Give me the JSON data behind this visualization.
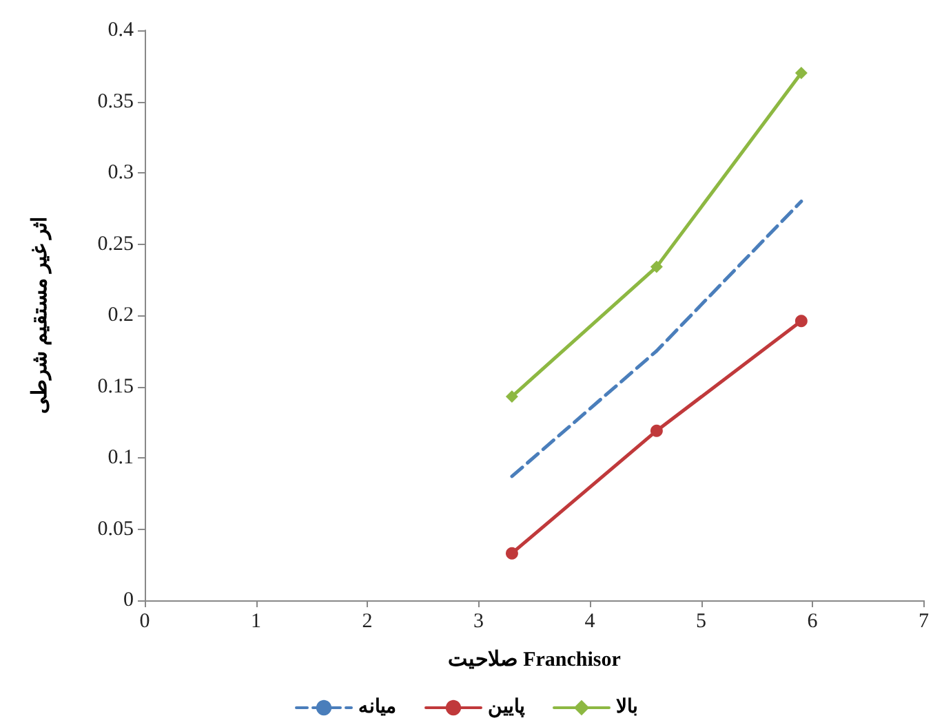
{
  "chart_data": {
    "type": "line",
    "xlabel": "صلاحیت Franchisor",
    "ylabel": "اثر غیر مستقیم شرطی",
    "xlim": [
      0,
      7
    ],
    "xticks": [
      0,
      1,
      2,
      3,
      4,
      5,
      6,
      7
    ],
    "ylim": [
      0,
      0.4
    ],
    "yticks": [
      0,
      0.05,
      0.1,
      0.15,
      0.2,
      0.25,
      0.3,
      0.35,
      0.4
    ],
    "grid": false,
    "legend": "bottom",
    "series": [
      {
        "name": "بالا",
        "color": "#8db842",
        "x": [
          3.3,
          4.6,
          5.9
        ],
        "values": [
          0.143,
          0.234,
          0.37
        ],
        "marker": "diamond",
        "line_style": "solid"
      },
      {
        "name": "پایین",
        "color": "#c0393b",
        "x": [
          3.3,
          4.6,
          5.9
        ],
        "values": [
          0.033,
          0.119,
          0.196
        ],
        "marker": "circle",
        "line_style": "solid"
      },
      {
        "name": "میانه",
        "color": "#4a7ebb",
        "x": [
          3.3,
          4.6,
          5.9
        ],
        "values": [
          0.087,
          0.175,
          0.28
        ],
        "marker": "none",
        "line_style": "dashed"
      }
    ]
  }
}
